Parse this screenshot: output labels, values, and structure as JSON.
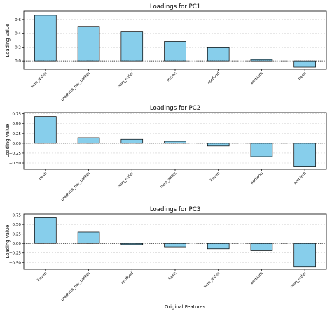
{
  "figure": {
    "xlabel": "Original Features"
  },
  "chart_data": [
    {
      "type": "bar",
      "title": "Loadings for PC1",
      "ylabel": "Loading Value",
      "categories": [
        "num_aisles",
        "products_per_basket",
        "num_order",
        "frozen",
        "nonfood",
        "ambient",
        "fresh"
      ],
      "values": [
        0.66,
        0.5,
        0.42,
        0.28,
        0.2,
        0.02,
        -0.09
      ],
      "ylim": [
        -0.12,
        0.72
      ],
      "yticks": [
        0.0,
        0.2,
        0.4,
        0.6
      ],
      "ytick_labels": [
        "0.0",
        "0.2",
        "0.4",
        "0.6"
      ],
      "grid": "y-dashed",
      "zero_line": "dotted",
      "bar_color": "#87ceeb"
    },
    {
      "type": "bar",
      "title": "Loadings for PC2",
      "ylabel": "Loading Value",
      "categories": [
        "fresh",
        "products_per_basket",
        "num_order",
        "num_aisles",
        "frozen",
        "nonfood",
        "ambient"
      ],
      "values": [
        0.68,
        0.14,
        0.1,
        0.05,
        -0.07,
        -0.34,
        -0.6
      ],
      "ylim": [
        -0.66,
        0.78
      ],
      "yticks": [
        0.75,
        0.5,
        0.25,
        0.0,
        -0.25,
        -0.5
      ],
      "ytick_labels": [
        "0.75",
        "0.50",
        "0.25",
        "0.00",
        "−0.25",
        "−0.50"
      ],
      "grid": "y-dashed",
      "zero_line": "dotted",
      "bar_color": "#87ceeb"
    },
    {
      "type": "bar",
      "title": "Loadings for PC3",
      "ylabel": "Loading Value",
      "categories": [
        "frozen",
        "products_per_basket",
        "nonfood",
        "fresh",
        "num_aisles",
        "ambient",
        "num_order"
      ],
      "values": [
        0.68,
        0.3,
        -0.03,
        -0.09,
        -0.14,
        -0.19,
        -0.62
      ],
      "ylim": [
        -0.68,
        0.78
      ],
      "yticks": [
        0.75,
        0.5,
        0.25,
        0.0,
        -0.25,
        -0.5
      ],
      "ytick_labels": [
        "0.75",
        "0.50",
        "0.25",
        "0.00",
        "−0.25",
        "−0.50"
      ],
      "grid": "y-dashed",
      "zero_line": "dotted",
      "bar_color": "#87ceeb"
    }
  ]
}
